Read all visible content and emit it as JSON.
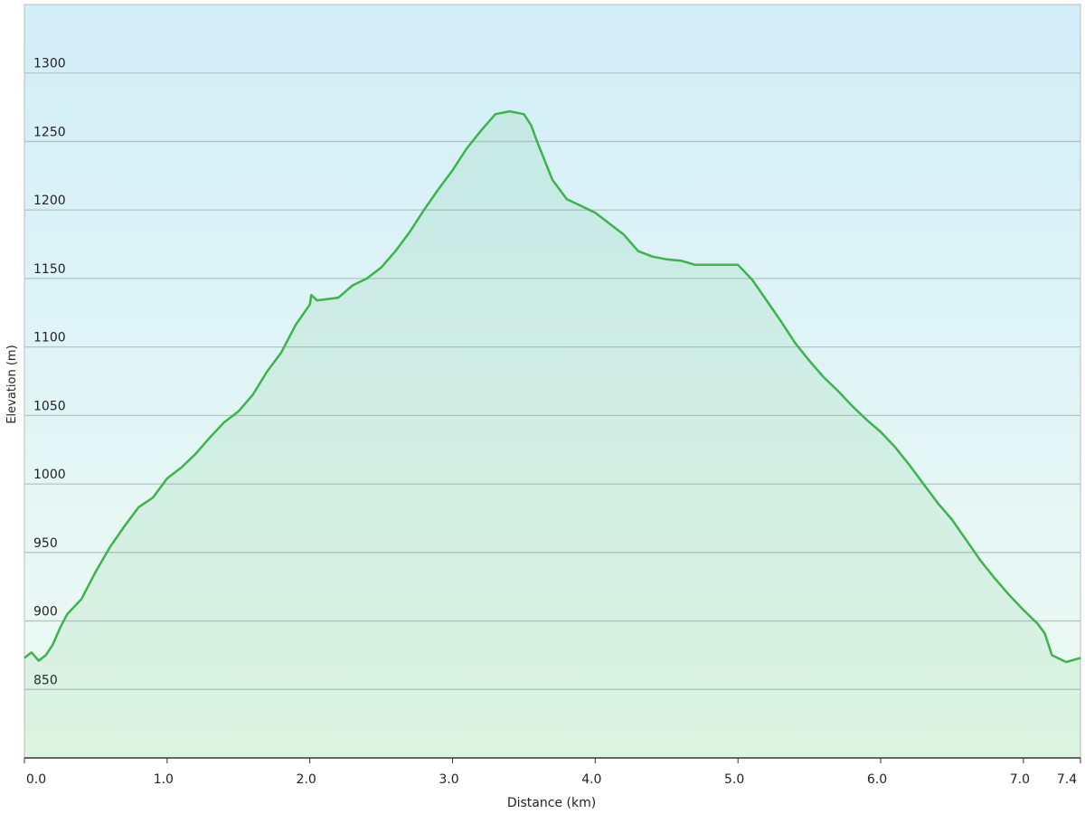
{
  "chart_data": {
    "type": "area",
    "x_label": "Distance (km)",
    "y_label": "Elevation (m)",
    "x": [
      0,
      0.05,
      0.1,
      0.15,
      0.2,
      0.25,
      0.3,
      0.4,
      0.5,
      0.6,
      0.7,
      0.8,
      0.9,
      1.0,
      1.1,
      1.2,
      1.3,
      1.4,
      1.5,
      1.6,
      1.7,
      1.8,
      1.9,
      2.0,
      2.01,
      2.05,
      2.2,
      2.3,
      2.4,
      2.5,
      2.6,
      2.7,
      2.8,
      2.9,
      3.0,
      3.1,
      3.2,
      3.3,
      3.4,
      3.5,
      3.55,
      3.6,
      3.7,
      3.8,
      3.9,
      4.0,
      4.1,
      4.2,
      4.3,
      4.4,
      4.5,
      4.6,
      4.7,
      4.8,
      4.9,
      5.0,
      5.1,
      5.2,
      5.3,
      5.4,
      5.5,
      5.6,
      5.7,
      5.8,
      5.9,
      6.0,
      6.1,
      6.2,
      6.3,
      6.4,
      6.5,
      6.6,
      6.7,
      6.8,
      6.9,
      7.0,
      7.1,
      7.15,
      7.2,
      7.3,
      7.4
    ],
    "values": [
      873,
      877,
      871,
      875,
      883,
      895,
      905,
      916,
      936,
      954,
      969,
      983,
      990,
      1004,
      1012,
      1022,
      1034,
      1045,
      1053,
      1065,
      1082,
      1096,
      1116,
      1131,
      1138,
      1134,
      1136,
      1145,
      1150,
      1158,
      1170,
      1184,
      1200,
      1215,
      1229,
      1245,
      1258,
      1270,
      1272,
      1270,
      1262,
      1248,
      1222,
      1208,
      1203,
      1198,
      1190,
      1182,
      1170,
      1166,
      1164,
      1163,
      1160,
      1160,
      1160,
      1160,
      1149,
      1134,
      1119,
      1103,
      1090,
      1078,
      1068,
      1057,
      1047,
      1038,
      1027,
      1014,
      1000,
      986,
      974,
      959,
      944,
      931,
      919,
      908,
      898,
      891,
      875,
      870,
      873
    ],
    "color": "#3cb44b",
    "xlim": [
      0,
      7.4
    ],
    "ylim": [
      800,
      1350
    ],
    "xticks": [
      {
        "value": 0,
        "label": "0.0"
      },
      {
        "value": 1,
        "label": "1.0"
      },
      {
        "value": 2,
        "label": "2.0"
      },
      {
        "value": 3,
        "label": "3.0"
      },
      {
        "value": 4,
        "label": "4.0"
      },
      {
        "value": 5,
        "label": "5.0"
      },
      {
        "value": 6,
        "label": "6.0"
      },
      {
        "value": 7,
        "label": "7.0"
      },
      7.4
    ],
    "yticks": [
      850,
      900,
      950,
      1000,
      1050,
      1100,
      1150,
      1200,
      1250,
      1300
    ],
    "grid": true
  }
}
